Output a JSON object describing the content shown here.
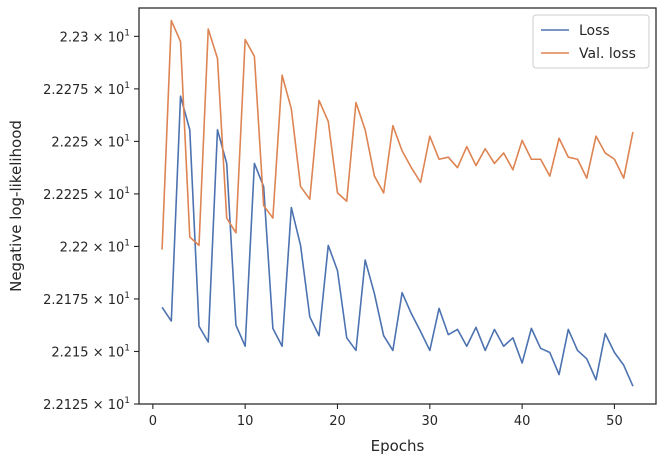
{
  "chart_data": {
    "type": "line",
    "title": "",
    "xlabel": "Epochs",
    "ylabel": "Negative log-likelihood",
    "xlim": [
      -1.5,
      54.5
    ],
    "ylim": [
      22.125,
      22.3135
    ],
    "x_ticks": [
      0,
      10,
      20,
      30,
      40,
      50
    ],
    "y_ticks": [
      {
        "value": 22.125,
        "mantissa": "2.2125",
        "base": "10",
        "exp": "1"
      },
      {
        "value": 22.15,
        "mantissa": "2.215",
        "base": "10",
        "exp": "1"
      },
      {
        "value": 22.175,
        "mantissa": "2.2175",
        "base": "10",
        "exp": "1"
      },
      {
        "value": 22.2,
        "mantissa": "2.22",
        "base": "10",
        "exp": "1"
      },
      {
        "value": 22.225,
        "mantissa": "2.2225",
        "base": "10",
        "exp": "1"
      },
      {
        "value": 22.25,
        "mantissa": "2.225",
        "base": "10",
        "exp": "1"
      },
      {
        "value": 22.275,
        "mantissa": "2.2275",
        "base": "10",
        "exp": "1"
      },
      {
        "value": 22.3,
        "mantissa": "2.23",
        "base": "10",
        "exp": "1"
      }
    ],
    "grid": false,
    "legend_position": "top-right",
    "x": [
      1,
      2,
      3,
      4,
      5,
      6,
      7,
      8,
      9,
      10,
      11,
      12,
      13,
      14,
      15,
      16,
      17,
      18,
      19,
      20,
      21,
      22,
      23,
      24,
      25,
      26,
      27,
      28,
      29,
      30,
      31,
      32,
      33,
      34,
      35,
      36,
      37,
      38,
      39,
      40,
      41,
      42,
      43,
      44,
      45,
      46,
      47,
      48,
      49,
      50,
      51,
      52
    ],
    "series": [
      {
        "name": "Loss",
        "color": "#4c72b0",
        "values": [
          22.171,
          22.1645,
          22.2715,
          22.2555,
          22.162,
          22.1545,
          22.2555,
          22.2395,
          22.1625,
          22.1525,
          22.2395,
          22.2285,
          22.161,
          22.1525,
          22.2185,
          22.2005,
          22.1665,
          22.1575,
          22.2005,
          22.1885,
          22.1565,
          22.1505,
          22.1935,
          22.1775,
          22.1575,
          22.1505,
          22.178,
          22.168,
          22.1595,
          22.1505,
          22.1705,
          22.158,
          22.1605,
          22.1525,
          22.1615,
          22.1505,
          22.1605,
          22.1525,
          22.1565,
          22.1445,
          22.161,
          22.1515,
          22.1495,
          22.139,
          22.1605,
          22.1505,
          22.1465,
          22.1365,
          22.1585,
          22.1495,
          22.1435,
          22.1335
        ]
      },
      {
        "name": "Val. loss",
        "color": "#dd8452",
        "values": [
          22.1985,
          22.3075,
          22.2975,
          22.2045,
          22.2005,
          22.3035,
          22.2895,
          22.2135,
          22.2065,
          22.2985,
          22.2905,
          22.2195,
          22.2135,
          22.2815,
          22.2655,
          22.2285,
          22.2225,
          22.2695,
          22.2595,
          22.2255,
          22.2215,
          22.2685,
          22.2555,
          22.2335,
          22.2255,
          22.2575,
          22.2455,
          22.2375,
          22.2305,
          22.2525,
          22.2415,
          22.2425,
          22.2375,
          22.2475,
          22.2385,
          22.2465,
          22.2395,
          22.2445,
          22.2365,
          22.2505,
          22.2415,
          22.2415,
          22.2335,
          22.2515,
          22.2425,
          22.2415,
          22.2325,
          22.2525,
          22.2445,
          22.2415,
          22.2325,
          22.2545
        ]
      }
    ]
  }
}
